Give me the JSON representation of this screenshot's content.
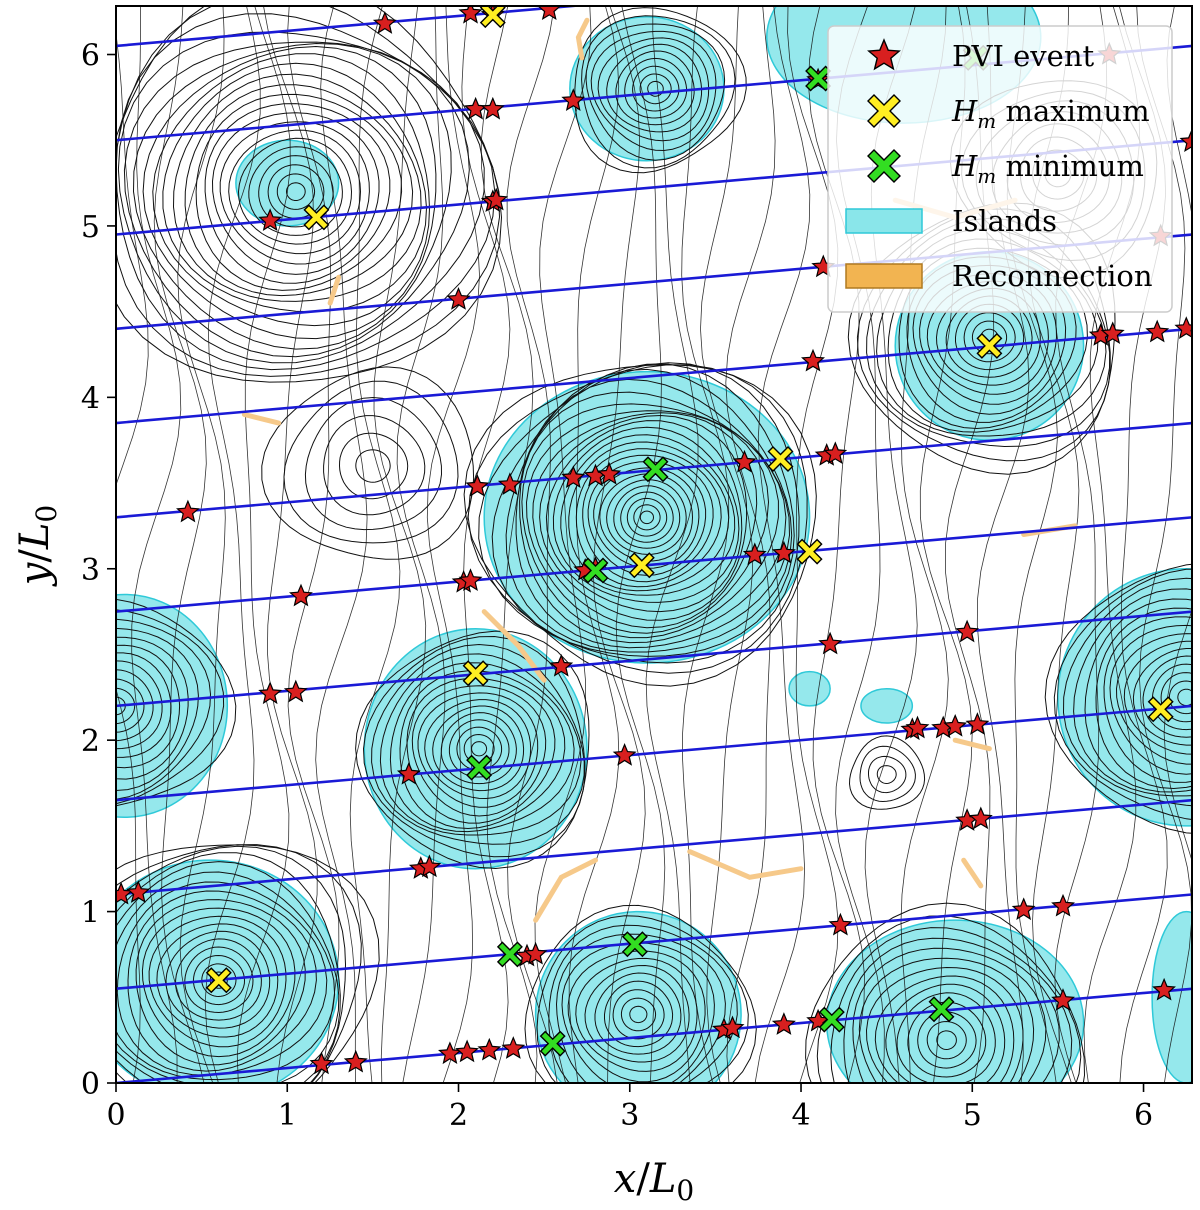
{
  "chart_data": {
    "type": "scatter",
    "xlabel": "x/L0",
    "ylabel": "y/L0",
    "xlim": [
      0,
      6.283
    ],
    "ylim": [
      0,
      6.283
    ],
    "xticks": [
      "0",
      "1",
      "2",
      "3",
      "4",
      "5",
      "6"
    ],
    "yticks": [
      "0",
      "1",
      "2",
      "3",
      "4",
      "5",
      "6"
    ],
    "legend": {
      "position": "top-right",
      "items": [
        {
          "key": "pvi",
          "label": "PVI event"
        },
        {
          "key": "hmax",
          "label": "H_m maximum",
          "math": "H",
          "sub": "m",
          "rest": " maximum"
        },
        {
          "key": "hmin",
          "label": "H_m minimum",
          "math": "H",
          "sub": "m",
          "rest": " minimum"
        },
        {
          "key": "islands",
          "label": "Islands"
        },
        {
          "key": "recon",
          "label": "Reconnection"
        }
      ]
    },
    "colors": {
      "pvi": "#d81f1f",
      "hmax": "#ffee22",
      "hmin": "#33dd22",
      "islands": "#8ae6ea",
      "islands_edge": "#2fc9d8",
      "recon": "#f6c98a",
      "trajectory": "#1a1ad6",
      "contour": "#111111"
    },
    "trajectory_lines": {
      "slope": 0.0875,
      "intercepts": [
        0.0,
        0.55,
        1.1,
        1.65,
        2.2,
        2.75,
        3.3,
        3.85,
        4.4,
        4.95,
        5.5,
        6.05
      ]
    },
    "islands": [
      {
        "cx": 3.1,
        "cy": 3.3,
        "rx": 0.95,
        "ry": 0.85
      },
      {
        "cx": 2.1,
        "cy": 1.95,
        "rx": 0.65,
        "ry": 0.7
      },
      {
        "cx": 0.55,
        "cy": 0.6,
        "rx": 0.75,
        "ry": 0.7
      },
      {
        "cx": 3.05,
        "cy": 0.4,
        "rx": 0.6,
        "ry": 0.6
      },
      {
        "cx": 4.9,
        "cy": 0.35,
        "rx": 0.75,
        "ry": 0.6
      },
      {
        "cx": 5.1,
        "cy": 4.3,
        "rx": 0.55,
        "ry": 0.55
      },
      {
        "cx": 3.1,
        "cy": 5.8,
        "rx": 0.45,
        "ry": 0.42
      },
      {
        "cx": 1.0,
        "cy": 5.25,
        "rx": 0.3,
        "ry": 0.25
      },
      {
        "cx": 4.6,
        "cy": 6.1,
        "rx": 0.8,
        "ry": 0.5
      },
      {
        "cx": 6.25,
        "cy": 2.25,
        "rx": 0.75,
        "ry": 0.75
      },
      {
        "cx": 0.05,
        "cy": 2.2,
        "rx": 0.6,
        "ry": 0.65
      },
      {
        "cx": 6.25,
        "cy": 0.5,
        "rx": 0.2,
        "ry": 0.5
      },
      {
        "cx": 4.05,
        "cy": 2.3,
        "rx": 0.12,
        "ry": 0.1
      },
      {
        "cx": 4.5,
        "cy": 2.2,
        "rx": 0.15,
        "ry": 0.1
      }
    ],
    "reconnection": [
      [
        [
          2.15,
          2.75
        ],
        [
          2.35,
          2.55
        ],
        [
          2.5,
          2.35
        ]
      ],
      [
        [
          2.45,
          0.95
        ],
        [
          2.6,
          1.2
        ],
        [
          2.8,
          1.3
        ]
      ],
      [
        [
          3.35,
          1.35
        ],
        [
          3.7,
          1.2
        ],
        [
          4.0,
          1.25
        ]
      ],
      [
        [
          4.55,
          5.15
        ],
        [
          4.9,
          5.05
        ],
        [
          5.25,
          5.15
        ]
      ],
      [
        [
          1.25,
          4.55
        ],
        [
          1.3,
          4.7
        ]
      ],
      [
        [
          2.75,
          6.2
        ],
        [
          2.7,
          6.1
        ],
        [
          2.72,
          5.98
        ]
      ],
      [
        [
          5.3,
          3.2
        ],
        [
          5.6,
          3.25
        ]
      ],
      [
        [
          4.95,
          1.3
        ],
        [
          5.05,
          1.15
        ]
      ],
      [
        [
          0.75,
          3.9
        ],
        [
          0.95,
          3.85
        ]
      ],
      [
        [
          4.9,
          2.0
        ],
        [
          5.1,
          1.95
        ]
      ]
    ],
    "pvi_events": [
      [
        1.57,
        6.18
      ],
      [
        2.07,
        6.24
      ],
      [
        2.2,
        6.23
      ],
      [
        2.53,
        6.26
      ],
      [
        2.1,
        5.68
      ],
      [
        2.2,
        5.68
      ],
      [
        2.67,
        5.73
      ],
      [
        4.1,
        5.85
      ],
      [
        5.8,
        6.0
      ],
      [
        6.28,
        5.49
      ],
      [
        0.9,
        5.03
      ],
      [
        2.2,
        5.14
      ],
      [
        2.22,
        5.15
      ],
      [
        4.13,
        4.76
      ],
      [
        6.1,
        4.94
      ],
      [
        2.0,
        4.57
      ],
      [
        4.07,
        4.21
      ],
      [
        5.75,
        4.36
      ],
      [
        5.82,
        4.37
      ],
      [
        6.08,
        4.38
      ],
      [
        6.25,
        4.4
      ],
      [
        0.42,
        3.33
      ],
      [
        2.11,
        3.48
      ],
      [
        2.3,
        3.49
      ],
      [
        2.67,
        3.53
      ],
      [
        2.8,
        3.54
      ],
      [
        2.88,
        3.55
      ],
      [
        3.67,
        3.62
      ],
      [
        4.15,
        3.66
      ],
      [
        4.2,
        3.67
      ],
      [
        1.08,
        2.84
      ],
      [
        2.03,
        2.92
      ],
      [
        2.07,
        2.93
      ],
      [
        2.74,
        2.99
      ],
      [
        2.8,
        3.0
      ],
      [
        3.73,
        3.08
      ],
      [
        3.9,
        3.09
      ],
      [
        0.9,
        2.27
      ],
      [
        1.05,
        2.28
      ],
      [
        2.6,
        2.43
      ],
      [
        4.17,
        2.56
      ],
      [
        4.97,
        2.63
      ],
      [
        1.71,
        1.8
      ],
      [
        2.97,
        1.91
      ],
      [
        4.65,
        2.06
      ],
      [
        4.68,
        2.07
      ],
      [
        4.83,
        2.07
      ],
      [
        4.9,
        2.08
      ],
      [
        5.03,
        2.09
      ],
      [
        0.03,
        1.1
      ],
      [
        0.13,
        1.11
      ],
      [
        1.78,
        1.25
      ],
      [
        1.83,
        1.26
      ],
      [
        4.97,
        1.53
      ],
      [
        5.05,
        1.54
      ],
      [
        2.4,
        0.74
      ],
      [
        2.45,
        0.75
      ],
      [
        4.23,
        0.92
      ],
      [
        5.3,
        1.01
      ],
      [
        5.53,
        1.03
      ],
      [
        1.2,
        0.11
      ],
      [
        1.4,
        0.12
      ],
      [
        1.95,
        0.17
      ],
      [
        2.05,
        0.18
      ],
      [
        2.18,
        0.19
      ],
      [
        2.32,
        0.2
      ],
      [
        3.55,
        0.31
      ],
      [
        3.6,
        0.32
      ],
      [
        3.9,
        0.34
      ],
      [
        4.1,
        0.36
      ],
      [
        5.53,
        0.48
      ],
      [
        6.12,
        0.54
      ]
    ],
    "hm_maxima": [
      [
        2.2,
        6.23
      ],
      [
        1.17,
        5.05
      ],
      [
        5.1,
        4.3
      ],
      [
        3.88,
        3.64
      ],
      [
        3.07,
        3.02
      ],
      [
        4.05,
        3.1
      ],
      [
        2.1,
        2.39
      ],
      [
        6.1,
        2.18
      ],
      [
        0.6,
        0.6
      ]
    ],
    "hm_minima": [
      [
        4.1,
        5.86
      ],
      [
        5.02,
        5.98
      ],
      [
        3.15,
        3.58
      ],
      [
        2.8,
        2.99
      ],
      [
        2.12,
        1.84
      ],
      [
        2.3,
        0.75
      ],
      [
        3.03,
        0.81
      ],
      [
        2.55,
        0.23
      ],
      [
        4.18,
        0.37
      ],
      [
        4.82,
        0.43
      ]
    ],
    "contour_centers": [
      {
        "cx": 3.1,
        "cy": 3.3,
        "n": 26,
        "r": 1.0
      },
      {
        "cx": 2.12,
        "cy": 1.95,
        "n": 16,
        "r": 0.7
      },
      {
        "cx": 0.6,
        "cy": 0.6,
        "n": 18,
        "r": 0.9
      },
      {
        "cx": 3.05,
        "cy": 0.4,
        "n": 13,
        "r": 0.65
      },
      {
        "cx": 4.85,
        "cy": 0.25,
        "n": 14,
        "r": 0.8
      },
      {
        "cx": 5.1,
        "cy": 4.35,
        "n": 16,
        "r": 0.8
      },
      {
        "cx": 3.15,
        "cy": 5.8,
        "n": 11,
        "r": 0.5
      },
      {
        "cx": 1.05,
        "cy": 5.2,
        "n": 22,
        "r": 1.2
      },
      {
        "cx": 6.25,
        "cy": 2.25,
        "n": 16,
        "r": 0.8
      },
      {
        "cx": 0.0,
        "cy": 2.2,
        "n": 12,
        "r": 0.65
      },
      {
        "cx": 4.5,
        "cy": 1.8,
        "n": 4,
        "r": 0.22
      },
      {
        "cx": 5.5,
        "cy": 5.3,
        "n": 8,
        "r": 0.6
      },
      {
        "cx": 1.5,
        "cy": 3.6,
        "n": 6,
        "r": 0.6
      }
    ]
  }
}
